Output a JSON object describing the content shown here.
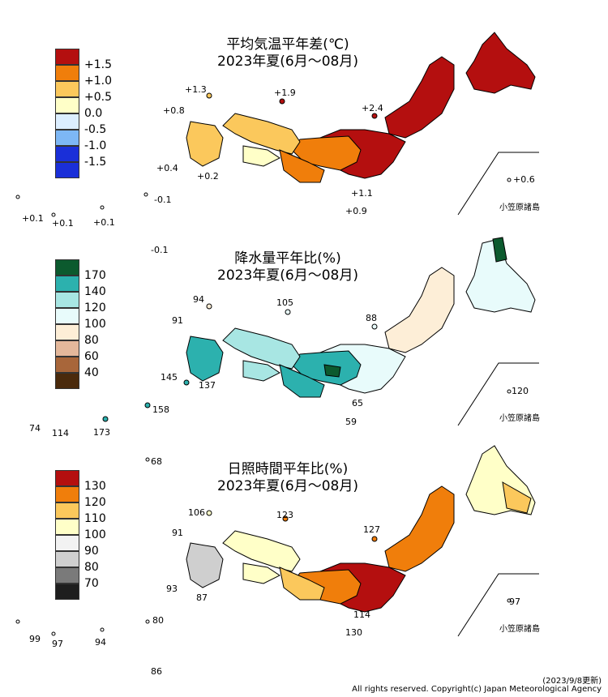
{
  "panels": [
    {
      "id": "temperature",
      "title_line1": "平均気温平年差(℃)",
      "title_line2": "2023年夏(6月～08月)",
      "legend": [
        {
          "label": "+1.5",
          "color": "#b40f0f"
        },
        {
          "label": "+1.0",
          "color": "#f07e0b"
        },
        {
          "label": "+0.5",
          "color": "#fbc85c"
        },
        {
          "label": "0.0",
          "color": "#ffffc8"
        },
        {
          "label": "-0.5",
          "color": "#dceeff"
        },
        {
          "label": "-1.0",
          "color": "#7db7f5"
        },
        {
          "label": "-1.5",
          "color": "#1a2fd8"
        }
      ],
      "values": [
        "+1.3",
        "+1.9",
        "+0.8",
        "+2.4",
        "+0.4",
        "+0.2",
        "+1.1",
        "+0.6",
        "+0.9",
        "-0.1",
        "+0.1",
        "+0.1",
        "+0.1",
        "-0.1"
      ],
      "ogasawara": "小笠原諸島"
    },
    {
      "id": "precipitation",
      "title_line1": "降水量平年比(%)",
      "title_line2": "2023年夏(6月～08月)",
      "legend": [
        {
          "label": "170",
          "color": "#0c5a2e"
        },
        {
          "label": "140",
          "color": "#2cb1ae"
        },
        {
          "label": "120",
          "color": "#a8e6e3"
        },
        {
          "label": "100",
          "color": "#e8fbfb"
        },
        {
          "label": "80",
          "color": "#fdeed7"
        },
        {
          "label": "60",
          "color": "#e4b89b"
        },
        {
          "label": "40",
          "color": "#a8663a"
        },
        {
          "label": "",
          "color": "#4a2a0c"
        }
      ],
      "values": [
        "94",
        "105",
        "91",
        "88",
        "145",
        "137",
        "65",
        "120",
        "59",
        "74",
        "114",
        "173",
        "158"
      ],
      "ogasawara": "小笠原諸島"
    },
    {
      "id": "sunshine",
      "title_line1": "日照時間平年比(%)",
      "title_line2": "2023年夏(6月～08月)",
      "legend": [
        {
          "label": "130",
          "color": "#b40f0f"
        },
        {
          "label": "120",
          "color": "#f07e0b"
        },
        {
          "label": "110",
          "color": "#fbc85c"
        },
        {
          "label": "100",
          "color": "#ffffc8"
        },
        {
          "label": "90",
          "color": "#f2f2f2"
        },
        {
          "label": "80",
          "color": "#cfcfcf"
        },
        {
          "label": "70",
          "color": "#7a7a7a"
        },
        {
          "label": "",
          "color": "#1e1e1e"
        }
      ],
      "values": [
        "68",
        "106",
        "123",
        "91",
        "127",
        "93",
        "87",
        "97",
        "114",
        "130",
        "99",
        "97",
        "94",
        "80",
        "86"
      ],
      "ogasawara": "小笠原諸島"
    }
  ],
  "footer": {
    "updated": "(2023/9/8更新)",
    "copyright": "All rights reserved. Copyright(c) Japan Meteorological Agency"
  }
}
